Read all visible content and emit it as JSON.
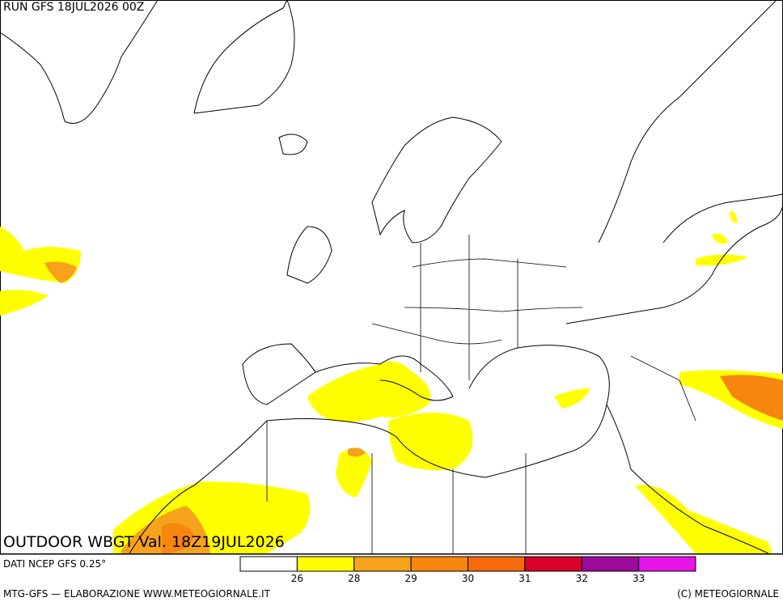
{
  "header": {
    "run": "RUN GFS 18JUL2026 00Z"
  },
  "map": {
    "title": "OUTDOOR WBGT Val. 18Z19JUL2026"
  },
  "legend": {
    "source": "DATI NCEP GFS 0.25°",
    "colors": [
      "#ffffff",
      "#ffff00",
      "#f7a21b",
      "#f7860f",
      "#f56a0c",
      "#d9002a",
      "#9b0a9b",
      "#e614e6",
      "#f08ce6"
    ],
    "ticks": [
      26,
      28,
      29,
      30,
      31,
      32,
      33
    ]
  },
  "footer": {
    "left": "MTG-GFS — ELABORAZIONE WWW.METEOGIORNALE.IT",
    "right": "(C) METEOGIORNALE"
  }
}
